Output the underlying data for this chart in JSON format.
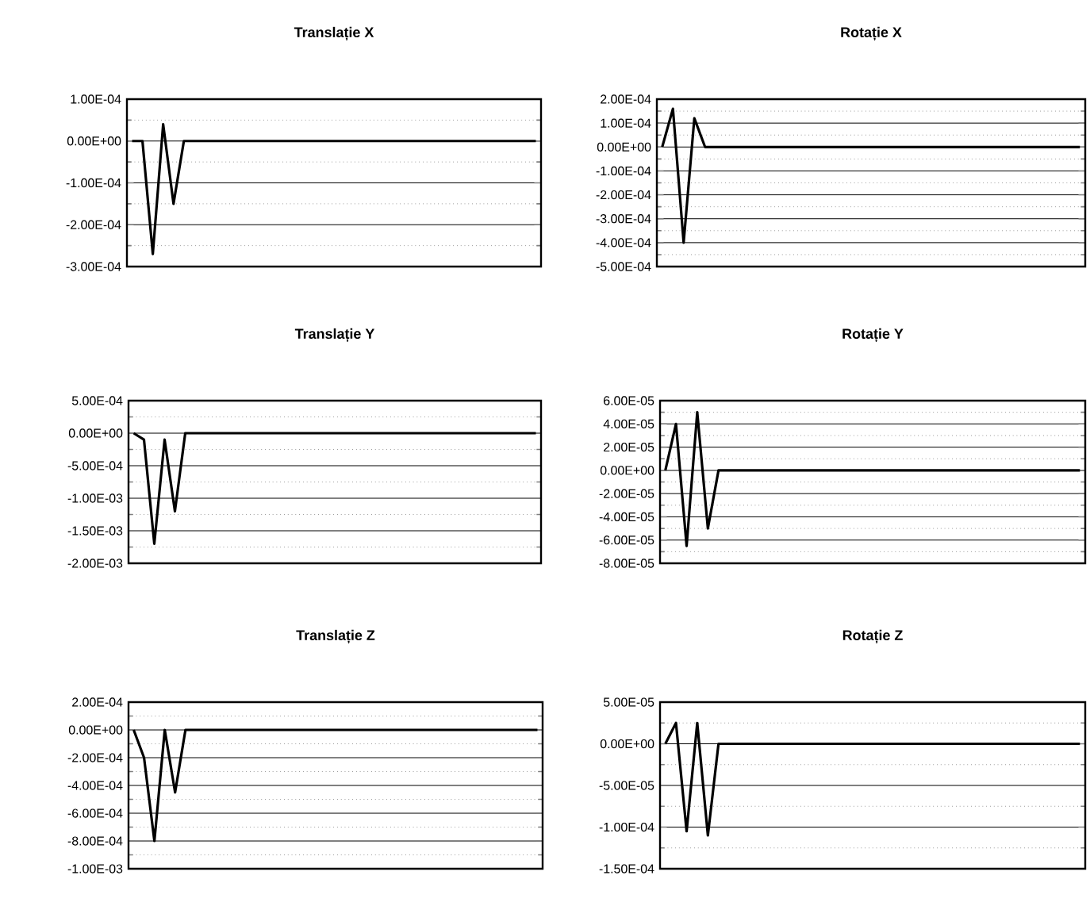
{
  "chart_data": [
    {
      "type": "line",
      "title": "Translație X",
      "categories": [
        null,
        null,
        null,
        null,
        null,
        null,
        null,
        null,
        null,
        null,
        null,
        null,
        null,
        null,
        null,
        null,
        null,
        null,
        null,
        null,
        null,
        null,
        null,
        null,
        null,
        null,
        null,
        null,
        null,
        null,
        null,
        null,
        null,
        null,
        null,
        null,
        null,
        null,
        null,
        null
      ],
      "series": [
        {
          "color": "#000000",
          "values": [
            0,
            0,
            -0.00027,
            4e-05,
            -0.00015,
            0,
            0,
            0,
            0,
            0,
            0,
            0,
            0,
            0,
            0,
            0,
            0,
            0,
            0,
            0,
            0,
            0,
            0,
            0,
            0,
            0,
            0,
            0,
            0,
            0,
            0,
            0,
            0,
            0,
            0,
            0,
            0,
            0,
            0,
            0
          ]
        }
      ],
      "ylim": [
        -0.0003,
        0.0001
      ],
      "yticks": [
        {
          "value": 0.0001,
          "label": "1.00E-04"
        },
        {
          "value": 0,
          "label": "0.00E+00"
        },
        {
          "value": -0.0001,
          "label": "-1.00E-04"
        },
        {
          "value": -0.0002,
          "label": "-2.00E-04"
        },
        {
          "value": -0.0003,
          "label": "-3.00E-04"
        }
      ],
      "grid": true,
      "marker": "none",
      "line_style": "solid"
    },
    {
      "type": "line",
      "title": "Rotație X",
      "categories": [
        null,
        null,
        null,
        null,
        null,
        null,
        null,
        null,
        null,
        null,
        null,
        null,
        null,
        null,
        null,
        null,
        null,
        null,
        null,
        null,
        null,
        null,
        null,
        null,
        null,
        null,
        null,
        null,
        null,
        null,
        null,
        null,
        null,
        null,
        null,
        null,
        null,
        null,
        null,
        null
      ],
      "series": [
        {
          "color": "#000000",
          "values": [
            0,
            0.00016,
            -0.0004,
            0.00012,
            0,
            0,
            0,
            0,
            0,
            0,
            0,
            0,
            0,
            0,
            0,
            0,
            0,
            0,
            0,
            0,
            0,
            0,
            0,
            0,
            0,
            0,
            0,
            0,
            0,
            0,
            0,
            0,
            0,
            0,
            0,
            0,
            0,
            0,
            0,
            0
          ]
        }
      ],
      "ylim": [
        -0.0005,
        0.0002
      ],
      "yticks": [
        {
          "value": 0.0002,
          "label": "2.00E-04"
        },
        {
          "value": 0.0001,
          "label": "1.00E-04"
        },
        {
          "value": 0,
          "label": "0.00E+00"
        },
        {
          "value": -0.0001,
          "label": "-1.00E-04"
        },
        {
          "value": -0.0002,
          "label": "-2.00E-04"
        },
        {
          "value": -0.0003,
          "label": "-3.00E-04"
        },
        {
          "value": -0.0004,
          "label": "-4.00E-04"
        },
        {
          "value": -0.0005,
          "label": "-5.00E-04"
        }
      ],
      "grid": true,
      "marker": "none",
      "line_style": "solid"
    },
    {
      "type": "line",
      "title": "Translație Y",
      "categories": [
        null,
        null,
        null,
        null,
        null,
        null,
        null,
        null,
        null,
        null,
        null,
        null,
        null,
        null,
        null,
        null,
        null,
        null,
        null,
        null,
        null,
        null,
        null,
        null,
        null,
        null,
        null,
        null,
        null,
        null,
        null,
        null,
        null,
        null,
        null,
        null,
        null,
        null,
        null,
        null
      ],
      "series": [
        {
          "color": "#000000",
          "values": [
            0,
            -0.0001,
            -0.0017,
            -0.0001,
            -0.0012,
            0,
            0,
            0,
            0,
            0,
            0,
            0,
            0,
            0,
            0,
            0,
            0,
            0,
            0,
            0,
            0,
            0,
            0,
            0,
            0,
            0,
            0,
            0,
            0,
            0,
            0,
            0,
            0,
            0,
            0,
            0,
            0,
            0,
            0,
            0
          ]
        }
      ],
      "ylim": [
        -0.002,
        0.0005
      ],
      "yticks": [
        {
          "value": 0.0005,
          "label": "5.00E-04"
        },
        {
          "value": 0,
          "label": "0.00E+00"
        },
        {
          "value": -0.0005,
          "label": "-5.00E-04"
        },
        {
          "value": -0.001,
          "label": "-1.00E-03"
        },
        {
          "value": -0.0015,
          "label": "-1.50E-03"
        },
        {
          "value": -0.002,
          "label": "-2.00E-03"
        }
      ],
      "grid": true,
      "marker": "none",
      "line_style": "solid"
    },
    {
      "type": "line",
      "title": "Rotație Y",
      "categories": [
        null,
        null,
        null,
        null,
        null,
        null,
        null,
        null,
        null,
        null,
        null,
        null,
        null,
        null,
        null,
        null,
        null,
        null,
        null,
        null,
        null,
        null,
        null,
        null,
        null,
        null,
        null,
        null,
        null,
        null,
        null,
        null,
        null,
        null,
        null,
        null,
        null,
        null,
        null,
        null
      ],
      "series": [
        {
          "color": "#000000",
          "values": [
            0,
            4e-05,
            -6.5e-05,
            5e-05,
            -5e-05,
            0,
            0,
            0,
            0,
            0,
            0,
            0,
            0,
            0,
            0,
            0,
            0,
            0,
            0,
            0,
            0,
            0,
            0,
            0,
            0,
            0,
            0,
            0,
            0,
            0,
            0,
            0,
            0,
            0,
            0,
            0,
            0,
            0,
            0,
            0
          ]
        }
      ],
      "ylim": [
        -8e-05,
        6e-05
      ],
      "yticks": [
        {
          "value": 6e-05,
          "label": "6.00E-05"
        },
        {
          "value": 4e-05,
          "label": "4.00E-05"
        },
        {
          "value": 2e-05,
          "label": "2.00E-05"
        },
        {
          "value": 0,
          "label": "0.00E+00"
        },
        {
          "value": -2e-05,
          "label": "-2.00E-05"
        },
        {
          "value": -4e-05,
          "label": "-4.00E-05"
        },
        {
          "value": -6e-05,
          "label": "-6.00E-05"
        },
        {
          "value": -8e-05,
          "label": "-8.00E-05"
        }
      ],
      "grid": true,
      "marker": "none",
      "line_style": "solid"
    },
    {
      "type": "line",
      "title": "Translație Z",
      "categories": [
        null,
        null,
        null,
        null,
        null,
        null,
        null,
        null,
        null,
        null,
        null,
        null,
        null,
        null,
        null,
        null,
        null,
        null,
        null,
        null,
        null,
        null,
        null,
        null,
        null,
        null,
        null,
        null,
        null,
        null,
        null,
        null,
        null,
        null,
        null,
        null,
        null,
        null,
        null,
        null
      ],
      "series": [
        {
          "color": "#000000",
          "values": [
            0,
            -0.0002,
            -0.0008,
            0,
            -0.00045,
            0,
            0,
            0,
            0,
            0,
            0,
            0,
            0,
            0,
            0,
            0,
            0,
            0,
            0,
            0,
            0,
            0,
            0,
            0,
            0,
            0,
            0,
            0,
            0,
            0,
            0,
            0,
            0,
            0,
            0,
            0,
            0,
            0,
            0,
            0
          ]
        }
      ],
      "ylim": [
        -0.001,
        0.0002
      ],
      "yticks": [
        {
          "value": 0.0002,
          "label": "2.00E-04"
        },
        {
          "value": 0,
          "label": "0.00E+00"
        },
        {
          "value": -0.0002,
          "label": "-2.00E-04"
        },
        {
          "value": -0.0004,
          "label": "-4.00E-04"
        },
        {
          "value": -0.0006,
          "label": "-6.00E-04"
        },
        {
          "value": -0.0008,
          "label": "-8.00E-04"
        },
        {
          "value": -0.001,
          "label": "-1.00E-03"
        }
      ],
      "grid": true,
      "marker": "none",
      "line_style": "solid"
    },
    {
      "type": "line",
      "title": "Rotație Z",
      "categories": [
        null,
        null,
        null,
        null,
        null,
        null,
        null,
        null,
        null,
        null,
        null,
        null,
        null,
        null,
        null,
        null,
        null,
        null,
        null,
        null,
        null,
        null,
        null,
        null,
        null,
        null,
        null,
        null,
        null,
        null,
        null,
        null,
        null,
        null,
        null,
        null,
        null,
        null,
        null,
        null
      ],
      "series": [
        {
          "color": "#000000",
          "values": [
            0,
            2.5e-05,
            -0.000105,
            2.5e-05,
            -0.00011,
            0,
            0,
            0,
            0,
            0,
            0,
            0,
            0,
            0,
            0,
            0,
            0,
            0,
            0,
            0,
            0,
            0,
            0,
            0,
            0,
            0,
            0,
            0,
            0,
            0,
            0,
            0,
            0,
            0,
            0,
            0,
            0,
            0,
            0,
            0
          ]
        }
      ],
      "ylim": [
        -0.00015,
        5e-05
      ],
      "yticks": [
        {
          "value": 5e-05,
          "label": "5.00E-05"
        },
        {
          "value": 0,
          "label": "0.00E+00"
        },
        {
          "value": -5e-05,
          "label": "-5.00E-05"
        },
        {
          "value": -0.0001,
          "label": "-1.00E-04"
        },
        {
          "value": -0.00015,
          "label": "-1.50E-04"
        }
      ],
      "grid": true,
      "marker": "none",
      "line_style": "solid"
    }
  ]
}
